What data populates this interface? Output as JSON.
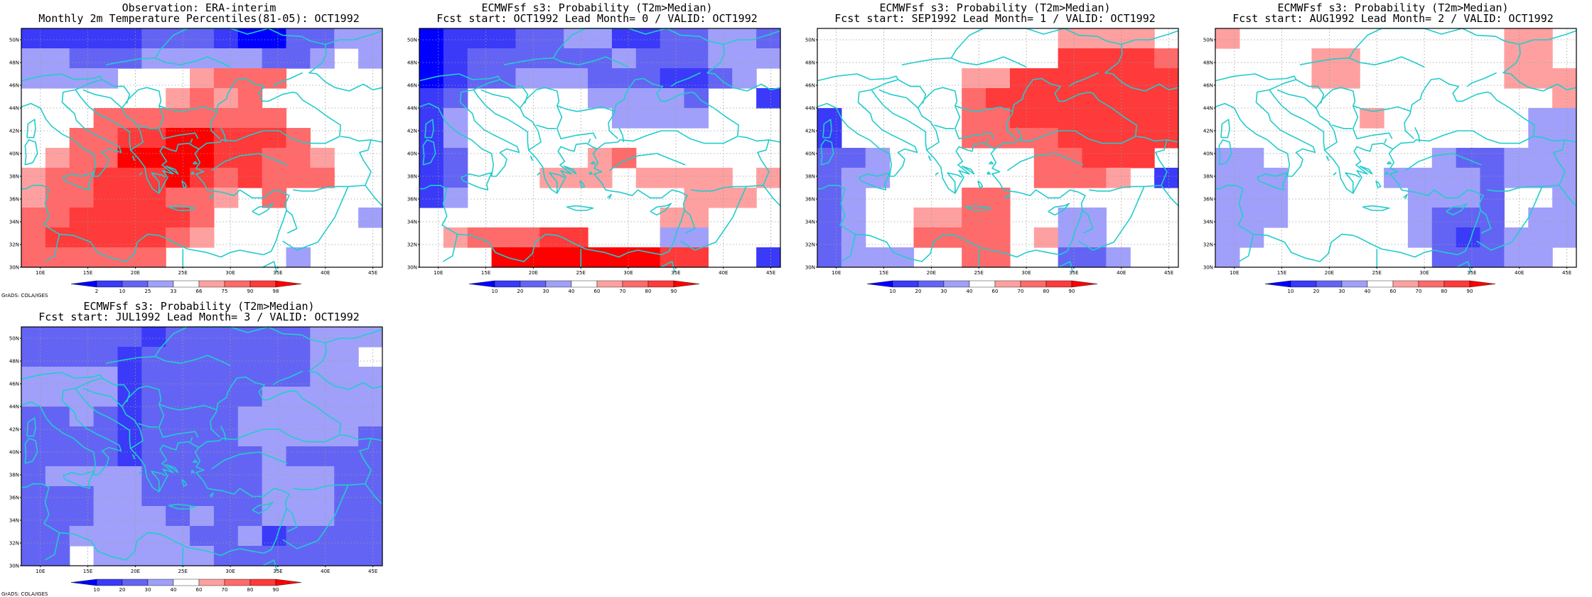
{
  "colors": {
    "c0": "#0000ff",
    "c1": "#3a3af8",
    "c2": "#6464f4",
    "c3": "#a0a0fa",
    "c4": "#ffffff",
    "c5": "#ffa0a0",
    "c6": "#ff6a6a",
    "c7": "#ff3a3a",
    "c8": "#ff0000",
    "coast": "#22cccc"
  },
  "axes": {
    "lat_labels": [
      "50N",
      "48N",
      "46N",
      "44N",
      "42N",
      "40N",
      "38N",
      "36N",
      "34N",
      "32N",
      "30N"
    ],
    "lon_labels": [
      "10E",
      "15E",
      "20E",
      "25E",
      "30E",
      "35E",
      "40E",
      "45E"
    ]
  },
  "credit": "GrADS: COLA/IGES",
  "panels": [
    {
      "title1": "Observation: ERA-interim",
      "title2": "Monthly 2m Temperature Percentiles(81-05): OCT1992",
      "colorbar": [
        "2",
        "10",
        "25",
        "33",
        "66",
        "75",
        "90",
        "98"
      ],
      "grid": [
        "111112221002233",
        "332223333322343",
        "333344456664444",
        "444444565644444",
        "444666666664444",
        "446677887776444",
        "456688887766544",
        "566777876766644",
        "566777665464444",
        "667777764444443",
        "677777654444444",
        "666666444443444"
      ]
    },
    {
      "title1": "ECMWFsf s3: Probability (T2m>Median)",
      "title2": "Fcst start: OCT1992  Lead Month= 0 / VALID: OCT1992",
      "colorbar": [
        "10",
        "20",
        "30",
        "40",
        "60",
        "70",
        "80",
        "90"
      ],
      "grid": [
        "011122331122332",
        "012222223222333",
        "012233322211234",
        "124444433332441",
        "134444443333444",
        "134444444444444",
        "124444456444444",
        "124445554555545",
        "134444444445554",
        "444444444455444",
        "456667744433444",
        "444888888877441"
      ]
    },
    {
      "title1": "ECMWFsf s3: Probability (T2m>Median)",
      "title2": "Fcst start: SEP1992  Lead Month= 1 / VALID: OCT1992",
      "colorbar": [
        "10",
        "20",
        "30",
        "40",
        "60",
        "70",
        "80",
        "90"
      ],
      "grid": [
        "444444444455554",
        "444444444477776",
        "444444557777777",
        "444444677777777",
        "144444667777777",
        "144444666677777",
        "223444444667774",
        "233444444666541",
        "234444664444444",
        "234455664433444",
        "234466664533444",
        "233344664422344"
      ]
    },
    {
      "title1": "ECMWFsf s3: Probability (T2m>Median)",
      "title2": "Fcst start: AUG1992  Lead Month= 2 / VALID: OCT1992",
      "colorbar": [
        "10",
        "20",
        "30",
        "40",
        "60",
        "70",
        "80",
        "90"
      ],
      "grid": [
        "544444444444554",
        "444455444444554",
        "444455444444555",
        "444444444444445",
        "444444544444433",
        "444444444444433",
        "334444444322333",
        "333444433332333",
        "333444443332443",
        "333444443222433",
        "334444443212333",
        "344444444222334"
      ]
    },
    {
      "title1": "ECMWFsf s3: Probability (T2m>Median)",
      "title2": "Fcst start: JUL1992  Lead Month= 3 / VALID: OCT1992",
      "colorbar": [
        "10",
        "20",
        "30",
        "40",
        "60",
        "70",
        "80",
        "90"
      ],
      "grid": [
        "222221222222333",
        "222212222222334",
        "333312222222333",
        "333312222233333",
        "223212222333333",
        "222212222333332",
        "222212222232222",
        "233332222233322",
        "222332222233322",
        "222333232233322",
        "223333322312222",
        "224333332222222"
      ]
    }
  ]
}
